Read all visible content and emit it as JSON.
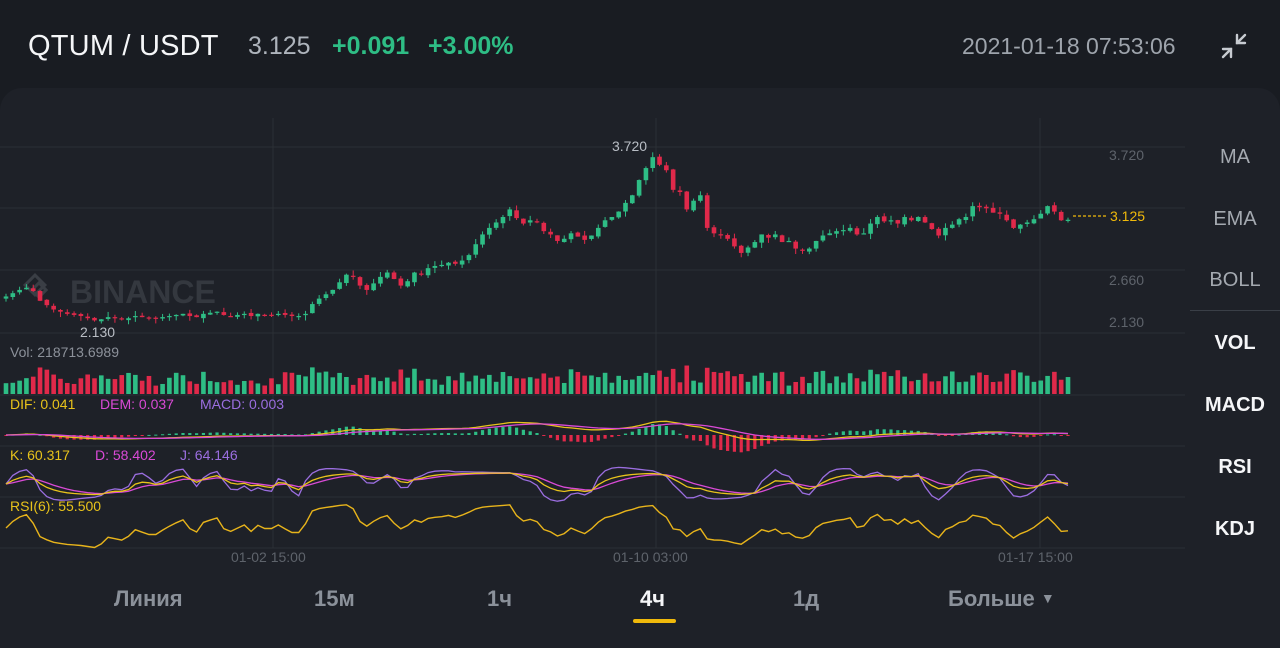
{
  "header": {
    "pair": "QTUM / USDT",
    "price": "3.125",
    "change": "+0.091",
    "change_pct": "+3.00%",
    "timestamp": "2021-01-18 07:53:06",
    "collapse_icon": "collapse-arrows-icon"
  },
  "colors": {
    "up": "#2ebd85",
    "down": "#e0294a",
    "accent": "#f0b90b",
    "grid": "#2b2f36",
    "dif": "#e8c31b",
    "dem": "#d94ad6",
    "macd": "#9b6ee0",
    "k": "#e8c31b",
    "d": "#d94ad6",
    "j": "#9b6ee0",
    "rsi": "#e8b41b"
  },
  "chart": {
    "watermark": "BINANCE",
    "axis_labels": [
      "3.720",
      "2.660",
      "2.130"
    ],
    "high_label": "3.720",
    "low_label": "2.130",
    "last_price_label": "3.125",
    "time_labels": [
      "01-02 15:00",
      "01-10 03:00",
      "01-17 15:00"
    ]
  },
  "indicators": {
    "vol": "Vol: 218713.6989",
    "dif": "DIF: 0.041",
    "dem": "DEM: 0.037",
    "macd": "MACD: 0.003",
    "k": "K: 60.317",
    "d": "D: 58.402",
    "j": "J: 64.146",
    "rsi": "RSI(6): 55.500"
  },
  "side_menu": [
    "MA",
    "EMA",
    "BOLL",
    "VOL",
    "MACD",
    "RSI",
    "KDJ"
  ],
  "tabs": {
    "line": "Линия",
    "m15": "15м",
    "h1": "1ч",
    "h4": "4ч",
    "d1": "1д",
    "more": "Больше",
    "active": "4ч"
  },
  "chart_data": {
    "type": "candlestick",
    "interval": "4ч",
    "y_range": [
      2.13,
      3.72
    ],
    "x_ticks": [
      "01-02 15:00",
      "01-10 03:00",
      "01-17 15:00"
    ],
    "close": [
      2.42,
      2.45,
      2.48,
      2.5,
      2.47,
      2.38,
      2.34,
      2.3,
      2.28,
      2.26,
      2.25,
      2.24,
      2.22,
      2.2,
      2.21,
      2.23,
      2.22,
      2.21,
      2.22,
      2.24,
      2.23,
      2.22,
      2.22,
      2.23,
      2.24,
      2.25,
      2.26,
      2.24,
      2.23,
      2.26,
      2.27,
      2.28,
      2.25,
      2.24,
      2.25,
      2.26,
      2.24,
      2.26,
      2.25,
      2.25,
      2.26,
      2.25,
      2.24,
      2.24,
      2.26,
      2.35,
      2.4,
      2.44,
      2.48,
      2.55,
      2.62,
      2.6,
      2.52,
      2.48,
      2.54,
      2.6,
      2.64,
      2.58,
      2.52,
      2.56,
      2.64,
      2.62,
      2.68,
      2.7,
      2.71,
      2.73,
      2.72,
      2.75,
      2.8,
      2.9,
      2.99,
      3.05,
      3.1,
      3.15,
      3.22,
      3.14,
      3.09,
      3.12,
      3.1,
      3.02,
      2.99,
      2.93,
      2.95,
      3.0,
      2.97,
      2.94,
      2.98,
      3.05,
      3.12,
      3.15,
      3.2,
      3.28,
      3.35,
      3.49,
      3.6,
      3.7,
      3.63,
      3.58,
      3.4,
      3.38,
      3.22,
      3.3,
      3.35,
      3.05,
      3.0,
      2.99,
      2.95,
      2.88,
      2.82,
      2.87,
      2.92,
      2.99,
      2.96,
      2.99,
      2.92,
      2.93,
      2.86,
      2.84,
      2.86,
      2.93,
      2.98,
      3.0,
      3.02,
      3.03,
      3.05,
      2.99,
      3.0,
      3.09,
      3.15,
      3.11,
      3.12,
      3.09,
      3.15,
      3.12,
      3.15,
      3.1,
      3.04,
      2.98,
      3.05,
      3.08,
      3.13,
      3.15,
      3.25,
      3.24,
      3.23,
      3.19,
      3.18,
      3.12,
      3.05,
      3.08,
      3.1,
      3.13,
      3.18,
      3.25,
      3.2,
      3.12,
      3.125
    ]
  }
}
